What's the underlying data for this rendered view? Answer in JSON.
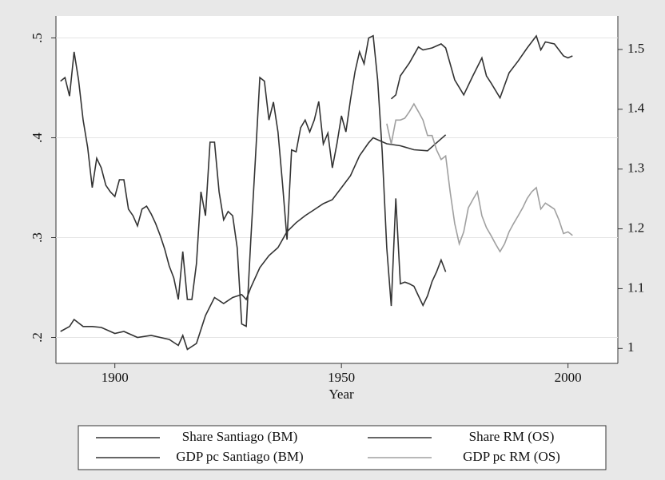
{
  "chart_data": {
    "type": "line",
    "xlabel": "Year",
    "xlim": [
      1887,
      2011
    ],
    "xticks": [
      1900,
      1950,
      2000
    ],
    "ylim": [
      0.174,
      0.522
    ],
    "yticks": [
      {
        "value": 0.2,
        "label": ".2"
      },
      {
        "value": 0.3,
        "label": ".3"
      },
      {
        "value": 0.4,
        "label": ".4"
      },
      {
        "value": 0.5,
        "label": ".5"
      }
    ],
    "y2lim": [
      0.975,
      1.556
    ],
    "y2ticks": [
      1,
      1.1,
      1.2,
      1.3,
      1.4,
      1.5
    ],
    "grid": true,
    "legend": "bottom",
    "series": [
      {
        "name": "Share Santiago (BM)",
        "color": "#333333",
        "x": [
          1888,
          1890,
          1891,
          1893,
          1895,
          1897,
          1900,
          1902,
          1905,
          1908,
          1912,
          1914,
          1915,
          1916,
          1918,
          1920,
          1922,
          1924,
          1926,
          1928,
          1929,
          1930,
          1932,
          1934,
          1936,
          1938,
          1940,
          1942,
          1944,
          1946,
          1948,
          1950,
          1952,
          1954,
          1956,
          1957,
          1958,
          1960,
          1963,
          1966,
          1969,
          1971,
          1973
        ],
        "values": [
          0.206,
          0.211,
          0.218,
          0.211,
          0.211,
          0.21,
          0.204,
          0.206,
          0.2,
          0.202,
          0.198,
          0.192,
          0.202,
          0.188,
          0.194,
          0.222,
          0.24,
          0.234,
          0.24,
          0.243,
          0.238,
          0.25,
          0.27,
          0.282,
          0.29,
          0.306,
          0.315,
          0.322,
          0.328,
          0.334,
          0.338,
          0.35,
          0.362,
          0.382,
          0.395,
          0.4,
          0.398,
          0.394,
          0.392,
          0.388,
          0.387,
          0.395,
          0.403
        ]
      },
      {
        "name": "Share RM (OS)",
        "color": "#333333",
        "x": [
          1961,
          1962,
          1963,
          1965,
          1967,
          1968,
          1970,
          1972,
          1973,
          1975,
          1977,
          1979,
          1981,
          1982,
          1983,
          1985,
          1987,
          1989,
          1991,
          1993,
          1994,
          1995,
          1997,
          1999,
          2000,
          2001
        ],
        "values": [
          0.439,
          0.443,
          0.462,
          0.475,
          0.491,
          0.488,
          0.49,
          0.494,
          0.49,
          0.458,
          0.443,
          0.462,
          0.48,
          0.462,
          0.455,
          0.44,
          0.465,
          0.477,
          0.49,
          0.502,
          0.488,
          0.496,
          0.494,
          0.482,
          0.48,
          0.482
        ]
      },
      {
        "name": "GDP pc Santiago (BM)",
        "color": "#333333",
        "axis": "y2",
        "x": [
          1888,
          1889,
          1890,
          1891,
          1892,
          1893,
          1894,
          1895,
          1896,
          1897,
          1898,
          1899,
          1900,
          1901,
          1902,
          1903,
          1904,
          1905,
          1906,
          1907,
          1908,
          1909,
          1910,
          1911,
          1912,
          1913,
          1914,
          1915,
          1916,
          1917,
          1918,
          1919,
          1920,
          1921,
          1922,
          1923,
          1924,
          1925,
          1926,
          1927,
          1928,
          1929,
          1930,
          1931,
          1932,
          1933,
          1934,
          1935,
          1936,
          1937,
          1938,
          1939,
          1940,
          1941,
          1942,
          1943,
          1944,
          1945,
          1946,
          1947,
          1948,
          1949,
          1950,
          1951,
          1952,
          1953,
          1954,
          1955,
          1956,
          1957,
          1958,
          1959,
          1960,
          1961,
          1962,
          1963,
          1964,
          1965,
          1966,
          1967,
          1968,
          1969,
          1970,
          1971,
          1972,
          1973
        ],
        "values": [
          1.447,
          1.453,
          1.422,
          1.496,
          1.449,
          1.382,
          1.336,
          1.269,
          1.318,
          1.302,
          1.273,
          1.262,
          1.254,
          1.282,
          1.282,
          1.233,
          1.222,
          1.205,
          1.233,
          1.238,
          1.225,
          1.209,
          1.189,
          1.166,
          1.138,
          1.118,
          1.082,
          1.162,
          1.082,
          1.082,
          1.142,
          1.262,
          1.222,
          1.345,
          1.345,
          1.262,
          1.215,
          1.229,
          1.222,
          1.168,
          1.041,
          1.037,
          1.182,
          1.316,
          1.453,
          1.447,
          1.382,
          1.412,
          1.362,
          1.275,
          1.182,
          1.332,
          1.329,
          1.369,
          1.382,
          1.362,
          1.382,
          1.413,
          1.342,
          1.36,
          1.302,
          1.342,
          1.389,
          1.362,
          1.416,
          1.463,
          1.496,
          1.476,
          1.519,
          1.523,
          1.449,
          1.329,
          1.168,
          1.071,
          1.251,
          1.108,
          1.111,
          1.108,
          1.104,
          1.088,
          1.072,
          1.088,
          1.112,
          1.128,
          1.148,
          1.128
        ]
      },
      {
        "name": "GDP pc RM (OS)",
        "color": "#a0a0a0",
        "axis": "y2",
        "x": [
          1960,
          1961,
          1962,
          1963,
          1964,
          1965,
          1966,
          1967,
          1968,
          1969,
          1970,
          1971,
          1972,
          1973,
          1974,
          1975,
          1976,
          1977,
          1978,
          1979,
          1980,
          1981,
          1982,
          1983,
          1984,
          1985,
          1986,
          1987,
          1988,
          1989,
          1990,
          1991,
          1992,
          1993,
          1994,
          1995,
          1996,
          1997,
          1998,
          1999,
          2000,
          2001
        ],
        "values": [
          1.376,
          1.342,
          1.382,
          1.382,
          1.385,
          1.396,
          1.409,
          1.396,
          1.382,
          1.356,
          1.356,
          1.332,
          1.316,
          1.322,
          1.262,
          1.209,
          1.175,
          1.195,
          1.235,
          1.249,
          1.262,
          1.222,
          1.202,
          1.189,
          1.175,
          1.162,
          1.175,
          1.195,
          1.209,
          1.222,
          1.235,
          1.251,
          1.262,
          1.269,
          1.233,
          1.243,
          1.238,
          1.233,
          1.215,
          1.192,
          1.195,
          1.189
        ]
      }
    ]
  }
}
